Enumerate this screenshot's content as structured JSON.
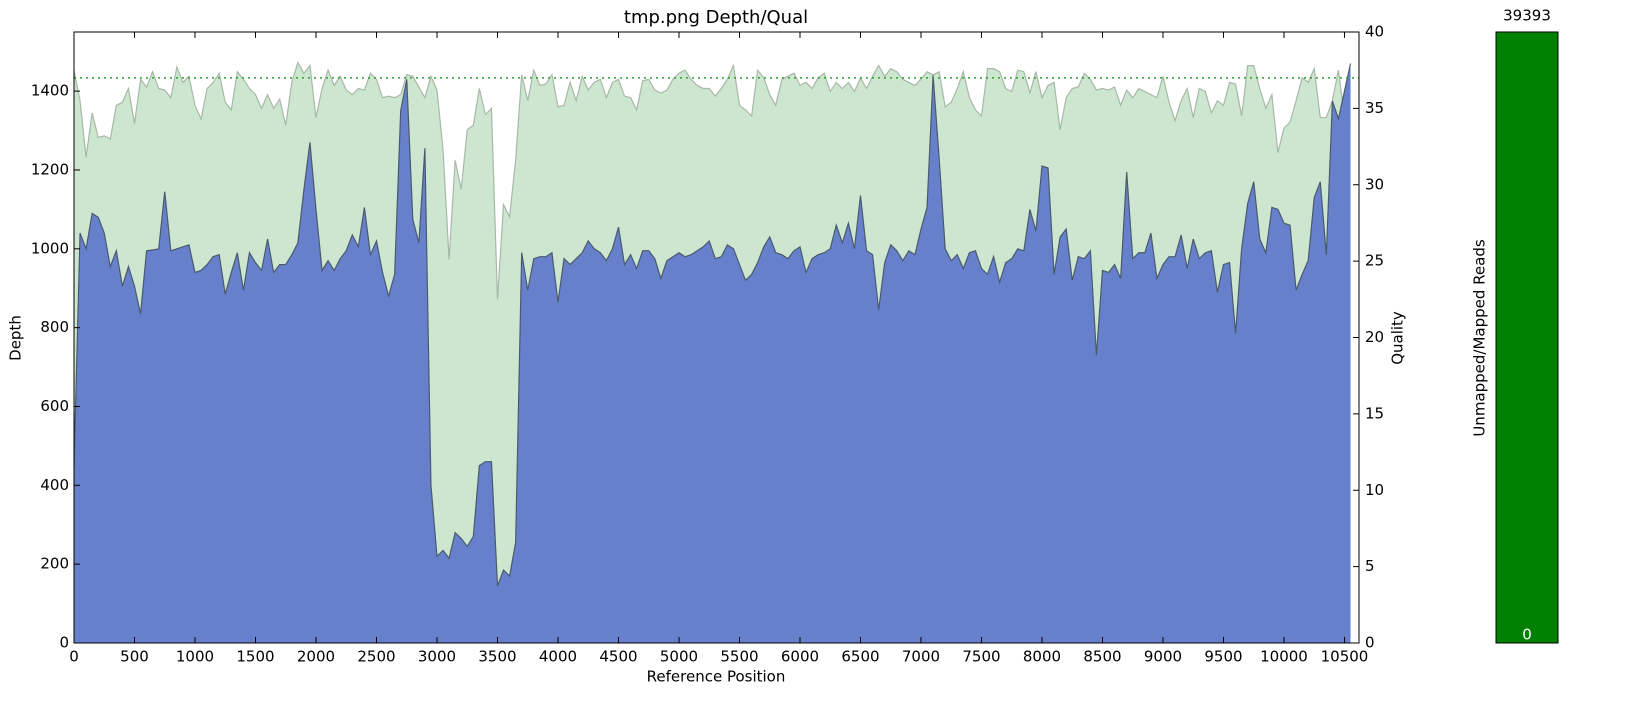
{
  "chart_data": [
    {
      "type": "area",
      "title": "tmp.png Depth/Qual",
      "xlabel": "Reference Position",
      "ylabel": "Depth",
      "y2label": "Quality",
      "x": [
        0,
        50,
        100,
        150,
        200,
        250,
        300,
        350,
        400,
        450,
        500,
        550,
        600,
        650,
        700,
        750,
        800,
        850,
        900,
        950,
        1000,
        1050,
        1100,
        1150,
        1200,
        1250,
        1300,
        1350,
        1400,
        1450,
        1500,
        1550,
        1600,
        1650,
        1700,
        1750,
        1800,
        1850,
        1900,
        1950,
        2000,
        2050,
        2100,
        2150,
        2200,
        2250,
        2300,
        2350,
        2400,
        2450,
        2500,
        2550,
        2600,
        2650,
        2700,
        2750,
        2800,
        2850,
        2900,
        2950,
        3000,
        3050,
        3100,
        3150,
        3200,
        3250,
        3300,
        3350,
        3400,
        3450,
        3500,
        3550,
        3600,
        3650,
        3700,
        3750,
        3800,
        3850,
        3900,
        3950,
        4000,
        4050,
        4100,
        4150,
        4200,
        4250,
        4300,
        4350,
        4400,
        4450,
        4500,
        4550,
        4600,
        4650,
        4700,
        4750,
        4800,
        4850,
        4900,
        4950,
        5000,
        5050,
        5100,
        5150,
        5200,
        5250,
        5300,
        5350,
        5400,
        5450,
        5500,
        5550,
        5600,
        5650,
        5700,
        5750,
        5800,
        5850,
        5900,
        5950,
        6000,
        6050,
        6100,
        6150,
        6200,
        6250,
        6300,
        6350,
        6400,
        6450,
        6500,
        6550,
        6600,
        6650,
        6700,
        6750,
        6800,
        6850,
        6900,
        6950,
        7000,
        7050,
        7100,
        7150,
        7200,
        7250,
        7300,
        7350,
        7400,
        7450,
        7500,
        7550,
        7600,
        7650,
        7700,
        7750,
        7800,
        7850,
        7900,
        7950,
        8000,
        8050,
        8100,
        8150,
        8200,
        8250,
        8300,
        8350,
        8400,
        8450,
        8500,
        8550,
        8600,
        8650,
        8700,
        8750,
        8800,
        8850,
        8900,
        8950,
        9000,
        9050,
        9100,
        9150,
        9200,
        9250,
        9300,
        9350,
        9400,
        9450,
        9500,
        9550,
        9600,
        9650,
        9700,
        9750,
        9800,
        9850,
        9900,
        9950,
        10000,
        10050,
        10100,
        10150,
        10200,
        10250,
        10300,
        10350,
        10400,
        10450,
        10500,
        10550
      ],
      "series": [
        {
          "color": "#cde6cf",
          "line_color": "#a8b8a8",
          "axis": "y2",
          "values": [
            37.5,
            35.5,
            31.8,
            34.7,
            33.1,
            33.2,
            33.0,
            35.2,
            35.4,
            36.3,
            34.0,
            36.9,
            36.4,
            37.4,
            36.3,
            36.2,
            35.7,
            37.7,
            36.7,
            37.1,
            35.2,
            34.3,
            36.3,
            36.7,
            37.3,
            35.4,
            34.9,
            37.4,
            36.9,
            36.3,
            35.9,
            35.0,
            35.9,
            35.0,
            35.6,
            33.9,
            36.7,
            38.0,
            37.3,
            37.8,
            34.4,
            36.3,
            37.5,
            36.5,
            37.1,
            36.2,
            35.9,
            36.3,
            36.2,
            37.3,
            36.9,
            35.7,
            35.8,
            35.7,
            35.9,
            37.2,
            37.1,
            36.4,
            35.7,
            37.1,
            36.2,
            32.3,
            25.1,
            31.6,
            29.7,
            33.6,
            33.9,
            36.3,
            34.6,
            35.0,
            22.5,
            28.7,
            27.9,
            31.6,
            37.2,
            35.5,
            37.5,
            36.5,
            36.6,
            37.2,
            35.1,
            35.2,
            36.7,
            35.5,
            37.1,
            36.2,
            36.7,
            36.9,
            35.7,
            36.7,
            36.9,
            35.8,
            35.7,
            34.9,
            36.8,
            36.9,
            36.2,
            36.0,
            36.2,
            36.9,
            37.3,
            37.5,
            36.9,
            36.5,
            36.3,
            36.3,
            35.8,
            36.3,
            36.9,
            37.8,
            35.2,
            34.9,
            34.5,
            37.5,
            37.0,
            35.9,
            35.2,
            36.9,
            37.1,
            37.3,
            36.5,
            36.7,
            36.3,
            37.0,
            37.3,
            36.1,
            36.7,
            36.3,
            36.7,
            36.1,
            37.0,
            36.3,
            37.1,
            37.8,
            37.1,
            37.6,
            37.4,
            36.9,
            36.7,
            36.5,
            36.9,
            37.4,
            37.2,
            37.4,
            35.1,
            35.4,
            36.3,
            37.4,
            35.7,
            34.9,
            34.5,
            37.6,
            37.6,
            37.4,
            36.3,
            36.1,
            37.5,
            37.4,
            36.0,
            37.4,
            35.7,
            36.5,
            36.7,
            33.6,
            35.7,
            36.3,
            36.4,
            37.3,
            36.9,
            36.2,
            36.3,
            36.2,
            36.4,
            35.2,
            36.2,
            35.7,
            36.3,
            36.1,
            35.9,
            35.7,
            37.1,
            35.4,
            34.2,
            35.5,
            36.3,
            34.4,
            36.3,
            36.1,
            34.7,
            35.5,
            35.2,
            36.7,
            36.6,
            34.5,
            37.8,
            37.8,
            36.3,
            35.0,
            35.9,
            32.1,
            33.7,
            34.1,
            35.5,
            37.0,
            36.7,
            37.6,
            34.4,
            34.4,
            35.5,
            37.5,
            34.4,
            34.0
          ]
        },
        {
          "color": "#6780cb",
          "line_color": "#4a5a6e",
          "axis": "y",
          "values": [
            450,
            1040,
            1000,
            1090,
            1080,
            1040,
            955,
            995,
            905,
            955,
            905,
            835,
            995,
            997,
            1000,
            1145,
            995,
            1000,
            1005,
            1010,
            940,
            945,
            960,
            980,
            985,
            885,
            940,
            990,
            895,
            990,
            965,
            945,
            1025,
            940,
            960,
            960,
            985,
            1015,
            1150,
            1270,
            1100,
            945,
            970,
            945,
            975,
            995,
            1035,
            1005,
            1105,
            985,
            1020,
            940,
            880,
            935,
            1350,
            1430,
            1075,
            1015,
            1255,
            400,
            220,
            235,
            215,
            280,
            265,
            245,
            270,
            450,
            460,
            460,
            145,
            185,
            170,
            255,
            990,
            895,
            975,
            980,
            980,
            990,
            865,
            975,
            960,
            975,
            990,
            1020,
            1000,
            990,
            970,
            1000,
            1055,
            960,
            985,
            950,
            995,
            995,
            975,
            925,
            970,
            980,
            990,
            980,
            985,
            995,
            1005,
            1020,
            975,
            980,
            1010,
            1000,
            960,
            920,
            935,
            965,
            1005,
            1030,
            990,
            985,
            975,
            995,
            1005,
            940,
            975,
            985,
            990,
            1000,
            1060,
            1015,
            1065,
            1000,
            1135,
            995,
            985,
            845,
            965,
            1010,
            995,
            970,
            995,
            985,
            1050,
            1105,
            1440,
            1230,
            1000,
            970,
            985,
            950,
            990,
            995,
            950,
            935,
            980,
            915,
            965,
            975,
            1000,
            995,
            1100,
            1045,
            1210,
            1205,
            935,
            1030,
            1050,
            920,
            980,
            975,
            995,
            730,
            945,
            940,
            960,
            925,
            1195,
            975,
            990,
            990,
            1040,
            925,
            960,
            980,
            980,
            1035,
            950,
            1025,
            975,
            990,
            995,
            890,
            960,
            965,
            785,
            1000,
            1115,
            1170,
            1025,
            990,
            1105,
            1100,
            1065,
            1060,
            895,
            935,
            970,
            1130,
            1170,
            985,
            1375,
            1330,
            1400,
            1470
          ]
        }
      ],
      "hline": {
        "value": 37,
        "axis": "y2",
        "color": "#2ca02c"
      },
      "xlim": [
        0,
        10620
      ],
      "xticks": [
        0,
        500,
        1000,
        1500,
        2000,
        2500,
        3000,
        3500,
        4000,
        4500,
        5000,
        5500,
        6000,
        6500,
        7000,
        7500,
        8000,
        8500,
        9000,
        9500,
        10000,
        10500
      ],
      "ylim": [
        0,
        1550
      ],
      "yticks": [
        0,
        200,
        400,
        600,
        800,
        1000,
        1200,
        1400
      ],
      "y2lim": [
        0,
        40
      ],
      "y2ticks": [
        0,
        5,
        10,
        15,
        20,
        25,
        30,
        35,
        40
      ]
    },
    {
      "type": "bar",
      "ylabel": "Unmapped/Mapped Reads",
      "values": [
        0,
        39393
      ],
      "colors": [
        "#ff0000",
        "#008000"
      ],
      "ylim": [
        0,
        39393
      ]
    }
  ]
}
